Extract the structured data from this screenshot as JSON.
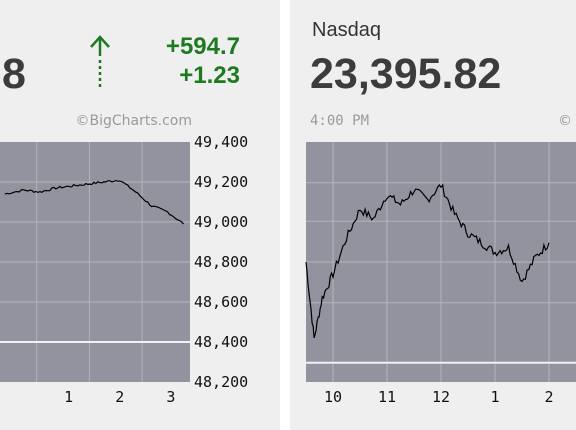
{
  "left_panel": {
    "value_fragment": "8",
    "change_points": "+594.7",
    "change_percent": "+1.23",
    "direction": "up",
    "credit": "©BigCharts.com",
    "colors": {
      "up": "#1d7a21",
      "plot_bg": "#93939f",
      "line": "#000000"
    }
  },
  "right_panel": {
    "name": "Nasdaq",
    "value": "23,395.82",
    "time": "4:00 PM",
    "credit": "©"
  },
  "chart_data": [
    {
      "type": "line",
      "x_tick_labels": [
        "1",
        "2",
        "3"
      ],
      "y_ticks": [
        "49,400",
        "49,200",
        "49,000",
        "48,800",
        "48,600",
        "48,400",
        "48,200"
      ],
      "ylim": [
        48200,
        49400
      ],
      "reference_line": 48400,
      "grid": true,
      "series": [
        {
          "x": [
            10.4,
            11,
            11.5,
            12,
            12.5,
            13,
            13.5,
            14,
            14.5,
            15,
            15.5,
            16
          ],
          "y": [
            49140,
            49160,
            49150,
            49170,
            49180,
            49190,
            49200,
            49210,
            49150,
            49080,
            49050,
            48990
          ]
        }
      ]
    },
    {
      "type": "line",
      "x_tick_labels": [
        "10",
        "11",
        "12",
        "1",
        "2"
      ],
      "ylim": [
        0,
        1
      ],
      "reference_line": 0.08,
      "grid": true,
      "series": [
        {
          "x": [
            9.5,
            9.65,
            9.8,
            10,
            10.25,
            10.5,
            10.75,
            11,
            11.25,
            11.5,
            11.75,
            12,
            12.25,
            12.5,
            12.75,
            13,
            13.25,
            13.5,
            13.75,
            14
          ],
          "y": [
            0.5,
            0.18,
            0.35,
            0.45,
            0.6,
            0.72,
            0.68,
            0.78,
            0.74,
            0.8,
            0.76,
            0.82,
            0.7,
            0.62,
            0.58,
            0.54,
            0.56,
            0.42,
            0.52,
            0.58
          ]
        }
      ]
    }
  ]
}
